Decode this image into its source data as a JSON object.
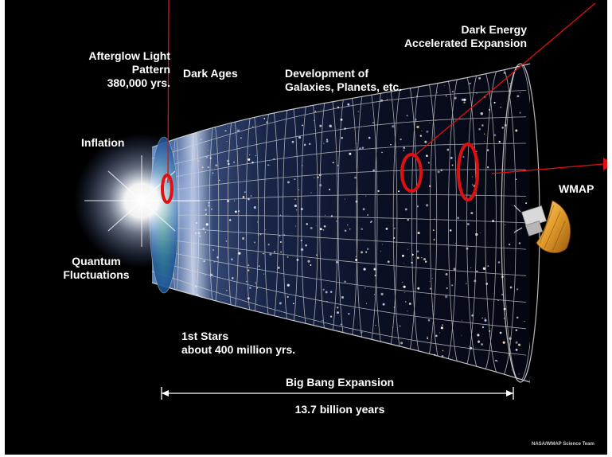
{
  "labels": {
    "afterglow": [
      "Afterglow Light",
      "Pattern",
      "380,000 yrs."
    ],
    "dark_ages": "Dark Ages",
    "development": [
      "Development of",
      "Galaxies, Planets, etc."
    ],
    "dark_energy": [
      "Dark Energy",
      "Accelerated Expansion"
    ],
    "inflation": "Inflation",
    "quantum": [
      "Quantum",
      "Fluctuations"
    ],
    "first_stars": [
      "1st Stars",
      "about 400 million yrs."
    ],
    "wmap": "WMAP",
    "expansion": "Big Bang Expansion",
    "duration": "13.7 billion years",
    "credit": "NASA/WMAP Science Team"
  },
  "colors": {
    "background": "#000000",
    "text": "#ffffff",
    "annotation": "#e01010",
    "grid": "#d8d8d8"
  },
  "icons": [
    "big-bang-flash-icon",
    "satellite-icon",
    "arrow-right-icon"
  ]
}
